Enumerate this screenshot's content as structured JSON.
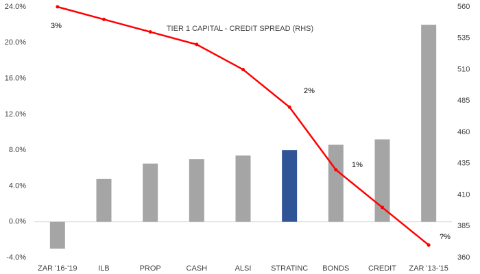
{
  "chart_data": {
    "type": "bar_line",
    "title": "TIER 1 CAPITAL - CREDIT SPREAD (RHS)",
    "categories": [
      "ZAR '16-'19",
      "ILB",
      "PROP",
      "CASH",
      "ALSI",
      "STRATINC",
      "BONDS",
      "CREDIT",
      "ZAR '13-'15"
    ],
    "series": [
      {
        "type": "bar",
        "colors": [
          "#a5a5a5",
          "#a5a5a5",
          "#a5a5a5",
          "#a5a5a5",
          "#a5a5a5",
          "#2f5597",
          "#a5a5a5",
          "#a5a5a5",
          "#a5a5a5"
        ],
        "values": [
          -3.0,
          4.8,
          6.5,
          7.0,
          7.4,
          8.0,
          8.6,
          9.2,
          22.0
        ]
      },
      {
        "type": "line",
        "axis": "y2",
        "color": "#ff0000",
        "values": [
          560,
          550,
          540,
          530,
          510,
          480,
          430,
          400,
          370
        ]
      }
    ],
    "annotations": [
      "3%",
      "2%",
      "1%",
      "?%"
    ],
    "ylim": [
      -4,
      24
    ],
    "yticks": [
      {
        "value": -4,
        "label": "-4.0%"
      },
      {
        "value": 0,
        "label": "0.0%"
      },
      {
        "value": 4,
        "label": "4.0%"
      },
      {
        "value": 8,
        "label": "8.0%"
      },
      {
        "value": 12,
        "label": "12.0%"
      },
      {
        "value": 16,
        "label": "16.0%"
      },
      {
        "value": 20,
        "label": "20.0%"
      },
      {
        "value": 24,
        "label": "24.0%"
      }
    ],
    "y2lim": [
      360,
      560
    ],
    "y2ticks": [
      360,
      385,
      410,
      435,
      460,
      485,
      510,
      535,
      560
    ],
    "grid": false
  }
}
